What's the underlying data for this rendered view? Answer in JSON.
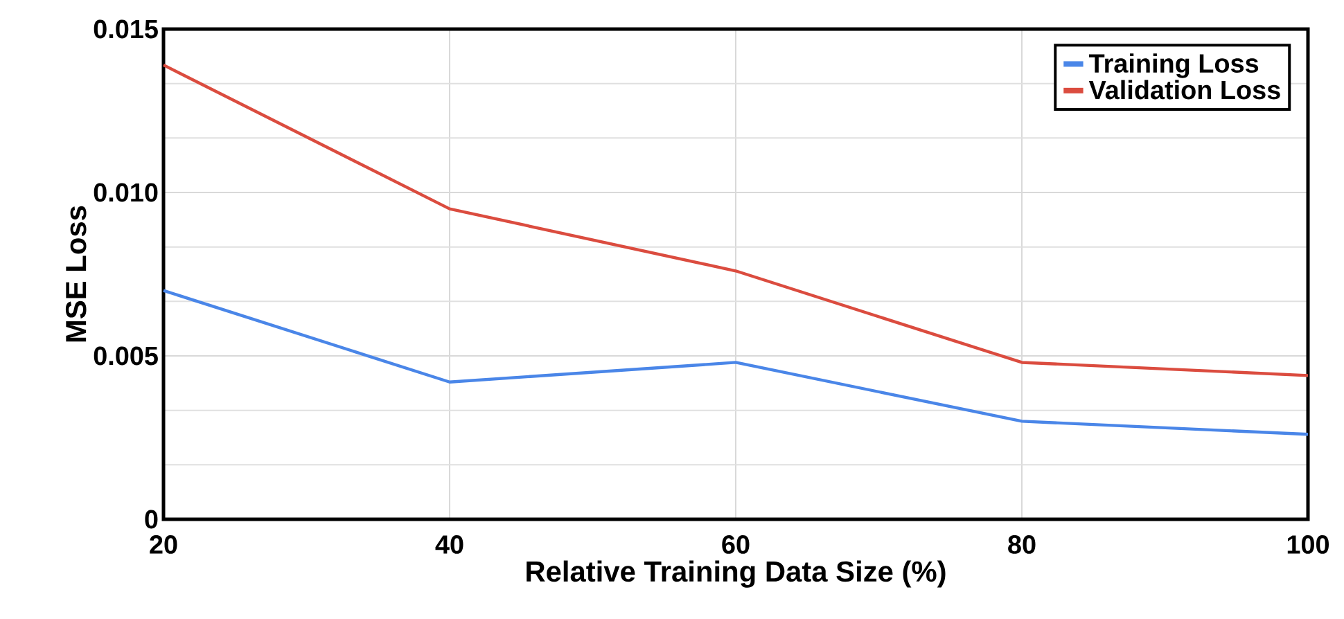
{
  "chart_data": {
    "type": "line",
    "xlabel": "Relative Training Data Size (%)",
    "ylabel": "MSE Loss",
    "x": [
      20,
      40,
      60,
      80,
      100
    ],
    "series": [
      {
        "name": "Training Loss",
        "color": "#4a86e8",
        "values": [
          0.007,
          0.0042,
          0.0048,
          0.003,
          0.0026
        ]
      },
      {
        "name": "Validation Loss",
        "color": "#db4c3f",
        "values": [
          0.0139,
          0.0095,
          0.0076,
          0.0048,
          0.0044
        ]
      }
    ],
    "xlim": [
      20,
      100
    ],
    "ylim": [
      0,
      0.015
    ],
    "xticks": [
      20,
      40,
      60,
      80,
      100
    ],
    "yticks": [
      0,
      0.005,
      {
        "value": 0.01,
        "label": "0.010"
      },
      0.015
    ],
    "grid": true,
    "legend": "top right",
    "marker": "none",
    "line_style": "solid"
  }
}
